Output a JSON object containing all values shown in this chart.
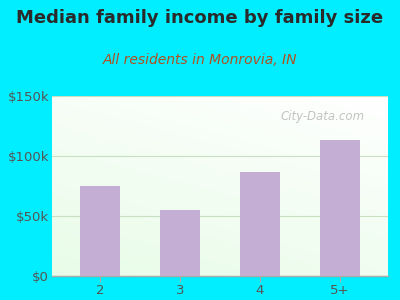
{
  "title": "Median family income by family size",
  "subtitle": "All residents in Monrovia, IN",
  "categories": [
    "2",
    "3",
    "4",
    "5+"
  ],
  "values": [
    75000,
    55000,
    87000,
    113000
  ],
  "bar_color": "#c5aed4",
  "ylim": [
    0,
    150000
  ],
  "yticks": [
    0,
    50000,
    100000,
    150000
  ],
  "ytick_labels": [
    "$0",
    "$50k",
    "$100k",
    "$150k"
  ],
  "background_outer": "#00eeff",
  "title_color": "#2a2a2a",
  "subtitle_color": "#b05020",
  "tick_color": "#555555",
  "watermark": "City-Data.com",
  "title_fontsize": 13,
  "subtitle_fontsize": 10,
  "grid_color": "#c8dfc0",
  "bottom_spine_color": "#aaaaaa"
}
